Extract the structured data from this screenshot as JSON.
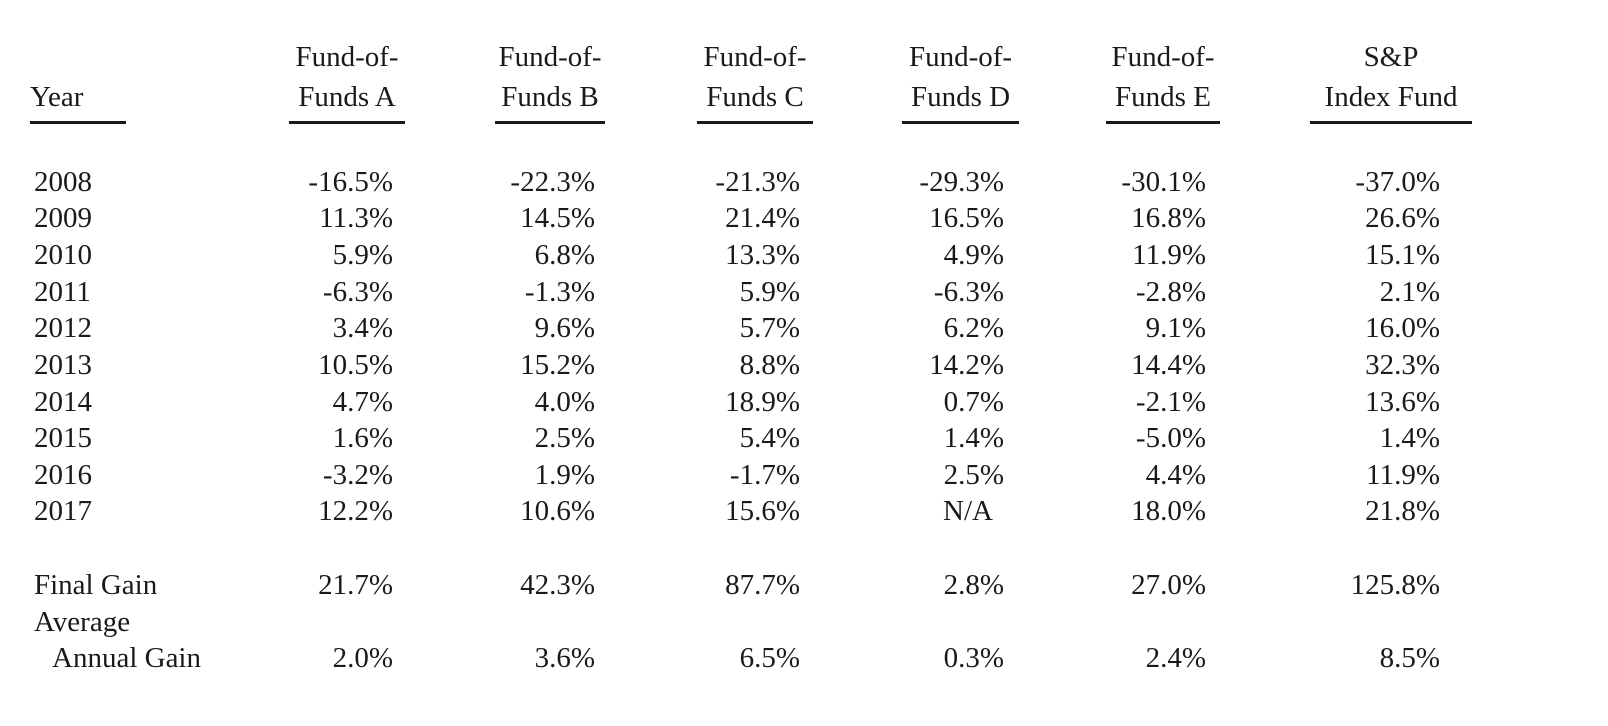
{
  "header": {
    "year_label": "Year",
    "columns": [
      {
        "line1": "Fund-of-",
        "line2": "Funds A"
      },
      {
        "line1": "Fund-of-",
        "line2": "Funds B"
      },
      {
        "line1": "Fund-of-",
        "line2": "Funds C"
      },
      {
        "line1": "Fund-of-",
        "line2": "Funds D"
      },
      {
        "line1": "Fund-of-",
        "line2": "Funds E"
      },
      {
        "line1": "S&P",
        "line2": "Index Fund"
      }
    ]
  },
  "rows": [
    {
      "year": "2008",
      "values": [
        "-16.5%",
        "-22.3%",
        "-21.3%",
        "-29.3%",
        "-30.1%",
        "-37.0%"
      ]
    },
    {
      "year": "2009",
      "values": [
        "11.3%",
        "14.5%",
        "21.4%",
        "16.5%",
        "16.8%",
        "26.6%"
      ]
    },
    {
      "year": "2010",
      "values": [
        "5.9%",
        "6.8%",
        "13.3%",
        "4.9%",
        "11.9%",
        "15.1%"
      ]
    },
    {
      "year": "2011",
      "values": [
        "-6.3%",
        "-1.3%",
        "5.9%",
        "-6.3%",
        "-2.8%",
        "2.1%"
      ]
    },
    {
      "year": "2012",
      "values": [
        "3.4%",
        "9.6%",
        "5.7%",
        "6.2%",
        "9.1%",
        "16.0%"
      ]
    },
    {
      "year": "2013",
      "values": [
        "10.5%",
        "15.2%",
        "8.8%",
        "14.2%",
        "14.4%",
        "32.3%"
      ]
    },
    {
      "year": "2014",
      "values": [
        "4.7%",
        "4.0%",
        "18.9%",
        "0.7%",
        "-2.1%",
        "13.6%"
      ]
    },
    {
      "year": "2015",
      "values": [
        "1.6%",
        "2.5%",
        "5.4%",
        "1.4%",
        "-5.0%",
        "1.4%"
      ]
    },
    {
      "year": "2016",
      "values": [
        "-3.2%",
        "1.9%",
        "-1.7%",
        "2.5%",
        "4.4%",
        "11.9%"
      ]
    },
    {
      "year": "2017",
      "values": [
        "12.2%",
        "10.6%",
        "15.6%",
        "N/A",
        "18.0%",
        "21.8%"
      ]
    }
  ],
  "summary": {
    "final_gain": {
      "label": "Final Gain",
      "values": [
        "21.7%",
        "42.3%",
        "87.7%",
        "2.8%",
        "27.0%",
        "125.8%"
      ]
    },
    "average_annual_gain": {
      "label_line1": "Average",
      "label_line2": "Annual Gain",
      "values": [
        "2.0%",
        "3.6%",
        "6.5%",
        "0.3%",
        "2.4%",
        "8.5%"
      ]
    }
  }
}
